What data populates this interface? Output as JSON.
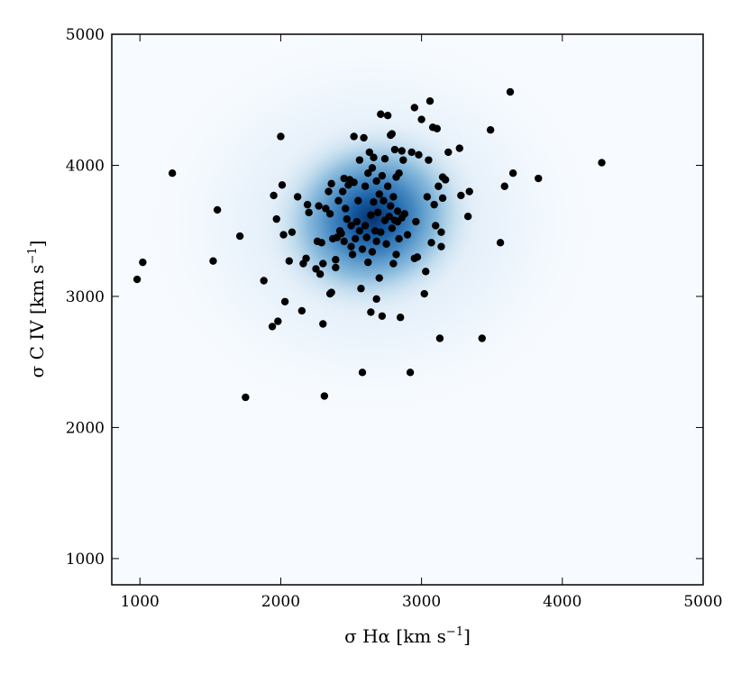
{
  "chart_data": {
    "type": "scatter",
    "title": "",
    "xlabel": "σ Hα [km s",
    "xlabel_unit_exp": "−1",
    "xlabel_close": "]",
    "ylabel": "σ C IV [km s",
    "ylabel_unit_exp": "−1",
    "ylabel_close": "]",
    "xlim": [
      800,
      5000
    ],
    "ylim": [
      800,
      5000
    ],
    "x_ticks": [
      1000,
      2000,
      3000,
      4000,
      5000
    ],
    "y_ticks": [
      1000,
      2000,
      3000,
      4000,
      5000
    ],
    "x_tick_labels": [
      "1000",
      "2000",
      "3000",
      "4000",
      "5000"
    ],
    "y_tick_labels": [
      "1000",
      "2000",
      "3000",
      "4000",
      "5000"
    ],
    "grid": false,
    "legend": "none",
    "density_background": {
      "colormap": "Blues",
      "peak_x": 2650,
      "peak_y": 3600,
      "color_low": "#f7fbff",
      "color_high": "#08306b"
    },
    "marker_color": "#000000",
    "points": [
      [
        980,
        3130
      ],
      [
        1020,
        3260
      ],
      [
        1230,
        3940
      ],
      [
        1520,
        3270
      ],
      [
        1550,
        3660
      ],
      [
        1710,
        3460
      ],
      [
        1750,
        2230
      ],
      [
        1880,
        3120
      ],
      [
        1940,
        2770
      ],
      [
        1950,
        3770
      ],
      [
        1970,
        3590
      ],
      [
        1980,
        2810
      ],
      [
        2000,
        4220
      ],
      [
        2010,
        3850
      ],
      [
        2020,
        3470
      ],
      [
        2030,
        2960
      ],
      [
        2060,
        3270
      ],
      [
        2080,
        3490
      ],
      [
        2120,
        3760
      ],
      [
        2150,
        2890
      ],
      [
        2160,
        3250
      ],
      [
        2180,
        3290
      ],
      [
        2190,
        3700
      ],
      [
        2200,
        3640
      ],
      [
        2250,
        3210
      ],
      [
        2260,
        3420
      ],
      [
        2270,
        3690
      ],
      [
        2280,
        3170
      ],
      [
        2290,
        3410
      ],
      [
        2300,
        3250
      ],
      [
        2300,
        2790
      ],
      [
        2310,
        2240
      ],
      [
        2320,
        3670
      ],
      [
        2340,
        3800
      ],
      [
        2350,
        3630
      ],
      [
        2350,
        3020
      ],
      [
        2360,
        3030
      ],
      [
        2360,
        3860
      ],
      [
        2370,
        3440
      ],
      [
        2390,
        3280
      ],
      [
        2390,
        3220
      ],
      [
        2400,
        3450
      ],
      [
        2410,
        3730
      ],
      [
        2420,
        3500
      ],
      [
        2430,
        3480
      ],
      [
        2440,
        3800
      ],
      [
        2450,
        3420
      ],
      [
        2450,
        3900
      ],
      [
        2460,
        3670
      ],
      [
        2470,
        3590
      ],
      [
        2480,
        3850
      ],
      [
        2490,
        3890
      ],
      [
        2500,
        3540
      ],
      [
        2500,
        3380
      ],
      [
        2510,
        3320
      ],
      [
        2520,
        3870
      ],
      [
        2520,
        4220
      ],
      [
        2530,
        3440
      ],
      [
        2540,
        3570
      ],
      [
        2550,
        3730
      ],
      [
        2560,
        4040
      ],
      [
        2560,
        3500
      ],
      [
        2570,
        3060
      ],
      [
        2580,
        3360
      ],
      [
        2580,
        2420
      ],
      [
        2590,
        4210
      ],
      [
        2600,
        3540
      ],
      [
        2600,
        3840
      ],
      [
        2610,
        3450
      ],
      [
        2620,
        3260
      ],
      [
        2620,
        3940
      ],
      [
        2630,
        4100
      ],
      [
        2640,
        2880
      ],
      [
        2640,
        3620
      ],
      [
        2650,
        3980
      ],
      [
        2650,
        3340
      ],
      [
        2660,
        3720
      ],
      [
        2660,
        4060
      ],
      [
        2670,
        3500
      ],
      [
        2680,
        3880
      ],
      [
        2680,
        3420
      ],
      [
        2680,
        2980
      ],
      [
        2690,
        3640
      ],
      [
        2700,
        3140
      ],
      [
        2700,
        3780
      ],
      [
        2710,
        4390
      ],
      [
        2710,
        3490
      ],
      [
        2720,
        3920
      ],
      [
        2720,
        2850
      ],
      [
        2730,
        3730
      ],
      [
        2740,
        3580
      ],
      [
        2740,
        4050
      ],
      [
        2750,
        3400
      ],
      [
        2760,
        4380
      ],
      [
        2760,
        3840
      ],
      [
        2770,
        3610
      ],
      [
        2780,
        4230
      ],
      [
        2780,
        3690
      ],
      [
        2790,
        4240
      ],
      [
        2790,
        3520
      ],
      [
        2800,
        3250
      ],
      [
        2800,
        3760
      ],
      [
        2810,
        4120
      ],
      [
        2810,
        3580
      ],
      [
        2820,
        3320
      ],
      [
        2820,
        3910
      ],
      [
        2830,
        3650
      ],
      [
        2830,
        3570
      ],
      [
        2840,
        3940
      ],
      [
        2840,
        3440
      ],
      [
        2850,
        2840
      ],
      [
        2860,
        3600
      ],
      [
        2860,
        4110
      ],
      [
        2870,
        4040
      ],
      [
        2880,
        3630
      ],
      [
        2900,
        3470
      ],
      [
        2920,
        2420
      ],
      [
        2930,
        4100
      ],
      [
        2950,
        4440
      ],
      [
        2950,
        3290
      ],
      [
        2960,
        3570
      ],
      [
        2970,
        3300
      ],
      [
        2980,
        4080
      ],
      [
        3000,
        4350
      ],
      [
        3020,
        3020
      ],
      [
        3030,
        3190
      ],
      [
        3040,
        3760
      ],
      [
        3050,
        4040
      ],
      [
        3060,
        4490
      ],
      [
        3070,
        3410
      ],
      [
        3080,
        4290
      ],
      [
        3090,
        3700
      ],
      [
        3100,
        3540
      ],
      [
        3110,
        4280
      ],
      [
        3120,
        3840
      ],
      [
        3130,
        2680
      ],
      [
        3140,
        3490
      ],
      [
        3140,
        3380
      ],
      [
        3150,
        3750
      ],
      [
        3150,
        3910
      ],
      [
        3170,
        3890
      ],
      [
        3190,
        4100
      ],
      [
        3270,
        4130
      ],
      [
        3280,
        3770
      ],
      [
        3330,
        3610
      ],
      [
        3340,
        3800
      ],
      [
        3430,
        2680
      ],
      [
        3490,
        4270
      ],
      [
        3560,
        3410
      ],
      [
        3590,
        3840
      ],
      [
        3630,
        4560
      ],
      [
        3650,
        3940
      ],
      [
        3830,
        3900
      ],
      [
        4280,
        4020
      ]
    ]
  }
}
